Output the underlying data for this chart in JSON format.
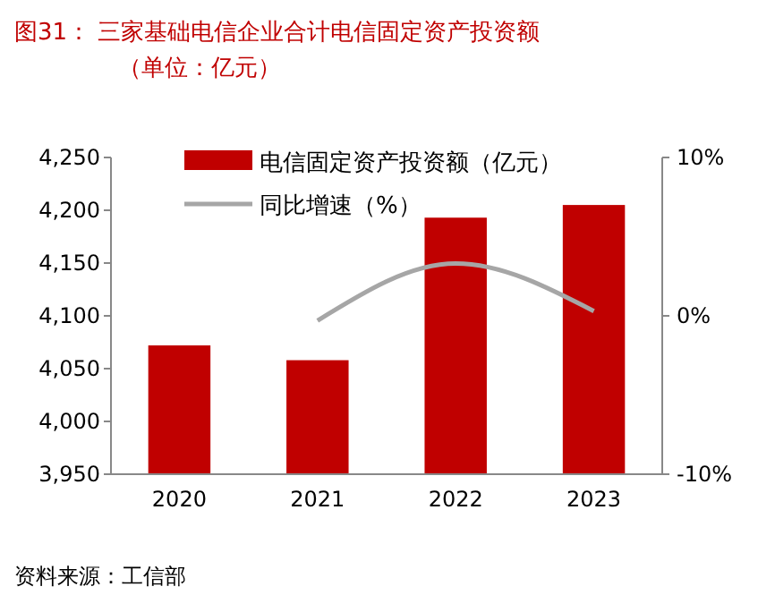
{
  "chart_data": {
    "type": "bar",
    "title": "图31：  三家基础电信企业合计电信固定资产投资额",
    "subtitle": "（单位：亿元）",
    "categories": [
      "2020",
      "2021",
      "2022",
      "2023"
    ],
    "series": [
      {
        "name": "电信固定资产投资额（亿元）",
        "color": "#c00000",
        "values": [
          4072,
          4058,
          4193,
          4205
        ]
      },
      {
        "name": "同比增速（%）",
        "type": "line",
        "axis": "y2",
        "color": "#a6a6a6",
        "values": [
          null,
          -0.3,
          3.3,
          0.3
        ]
      }
    ],
    "ylim": [
      3950,
      4250
    ],
    "yticks": [
      {
        "value": 3950,
        "label": "3,950"
      },
      {
        "value": 4000,
        "label": "4,000"
      },
      {
        "value": 4050,
        "label": "4,050"
      },
      {
        "value": 4100,
        "label": "4,100"
      },
      {
        "value": 4150,
        "label": "4,150"
      },
      {
        "value": 4200,
        "label": "4,200"
      },
      {
        "value": 4250,
        "label": "4,250"
      }
    ],
    "y2lim": [
      -10,
      10
    ],
    "y2ticks": [
      {
        "value": -10,
        "label": "-10%"
      },
      {
        "value": 0,
        "label": "0%"
      },
      {
        "value": 10,
        "label": "10%"
      }
    ],
    "legend": "top",
    "grid": false,
    "annotations": [
      "资料来源：工信部"
    ]
  }
}
